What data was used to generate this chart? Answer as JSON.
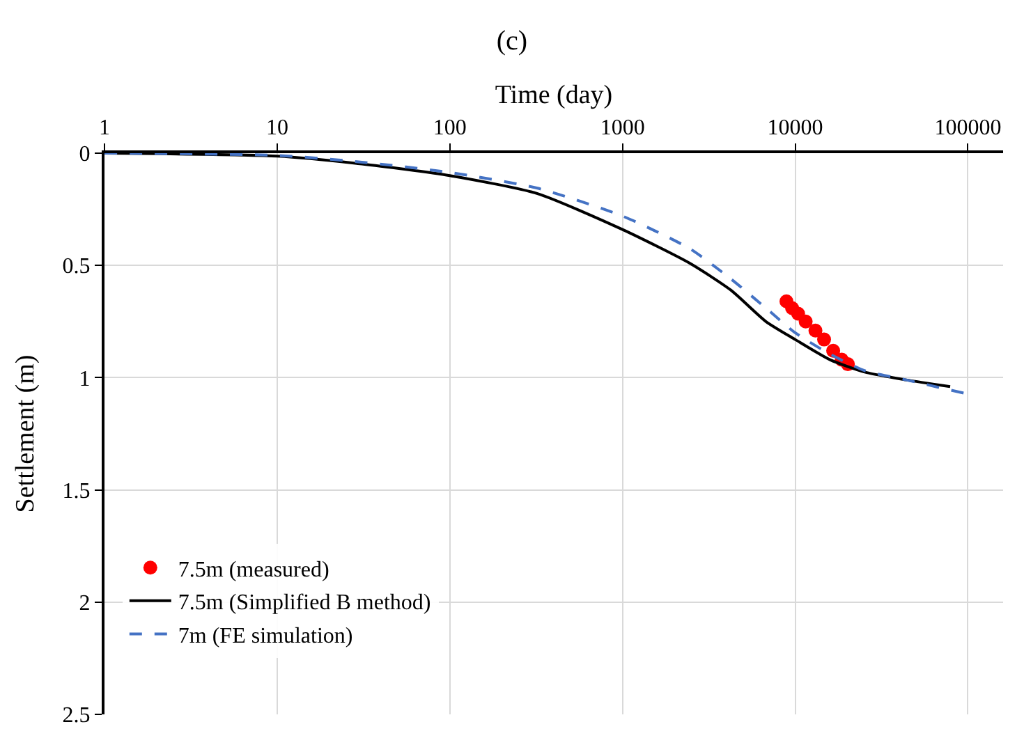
{
  "chart_data": {
    "type": "line",
    "title": "(c)",
    "xlabel": "Time (day)",
    "ylabel": "Settlement (m)",
    "log": "x",
    "xlim": [
      1,
      160000
    ],
    "xticks": [
      1,
      10,
      100,
      1000,
      10000,
      100000
    ],
    "ylim": [
      2.5,
      0
    ],
    "yticks": [
      0,
      0.5,
      1,
      1.5,
      2,
      2.5
    ],
    "grid": true,
    "legend": "bottom left",
    "series": [
      {
        "name": "7.5m (measured)",
        "type": "scatter",
        "marker": "circle",
        "color": "#ff0000",
        "x": [
          8900,
          9600,
          10400,
          11500,
          13100,
          14700,
          16600,
          18600,
          20200
        ],
        "values": [
          0.66,
          0.69,
          0.715,
          0.75,
          0.79,
          0.83,
          0.88,
          0.92,
          0.94
        ]
      },
      {
        "name": "7.5m (Simplified B method)",
        "line_style": "solid",
        "color": "#000000",
        "x": [
          1,
          10,
          31,
          100,
          322,
          1000,
          2450,
          4240,
          6770,
          10000,
          15900,
          25500,
          43900,
          79000
        ],
        "values": [
          0.0,
          0.013,
          0.048,
          0.1,
          0.18,
          0.34,
          0.49,
          0.61,
          0.75,
          0.83,
          0.92,
          0.976,
          1.01,
          1.04
        ]
      },
      {
        "name": "7m (FE simulation)",
        "line_style": "dashed",
        "color": "#4472c4",
        "x": [
          1,
          10,
          31,
          100,
          322,
          1000,
          2450,
          4240,
          6770,
          10000,
          15900,
          25500,
          43900,
          96000
        ],
        "values": [
          0.0,
          0.01,
          0.04,
          0.086,
          0.156,
          0.28,
          0.425,
          0.56,
          0.69,
          0.8,
          0.895,
          0.97,
          1.01,
          1.07
        ]
      }
    ]
  }
}
